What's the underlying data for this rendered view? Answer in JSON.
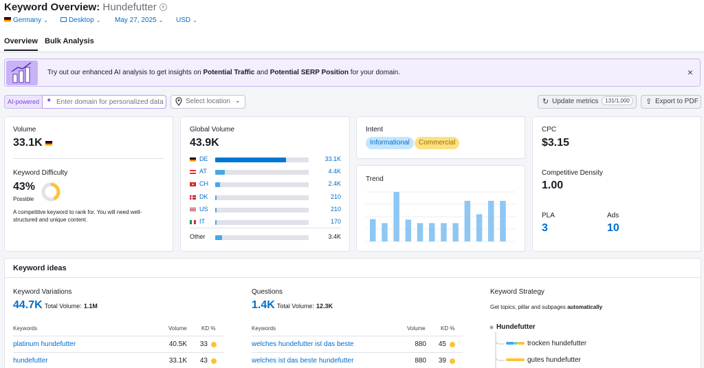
{
  "header": {
    "title": "Keyword Overview:",
    "keyword": "Hundefutter",
    "add_symbol": "+",
    "filters": {
      "database": "Germany",
      "device": "Desktop",
      "date": "May 27, 2025",
      "currency": "USD"
    },
    "tabs": [
      {
        "label": "Overview"
      },
      {
        "label": "Bulk Analysis"
      }
    ]
  },
  "banner": {
    "text_pre": "Try out our enhanced AI analysis to get insights on",
    "bold1": "Potential Traffic",
    "text_mid": "and",
    "bold2": "Potential SERP Position",
    "text_post": "for your domain.",
    "close": "×"
  },
  "controls": {
    "ai_badge": "AI-powered",
    "domain_placeholder": "Enter domain for personalized data",
    "location_placeholder": "Select location",
    "update_label": "Update metrics",
    "update_count": "131/1,000",
    "export_label": "Export to PDF"
  },
  "volume": {
    "label": "Volume",
    "value": "33.1K",
    "difficulty_label": "Keyword Difficulty",
    "difficulty_value": "43%",
    "difficulty_percent": 43,
    "difficulty_status": "Possible",
    "difficulty_desc_1": "A competitive keyword to rank for. You will need well-",
    "difficulty_desc_2": "structured and unique content."
  },
  "global_volume": {
    "label": "Global Volume",
    "value": "43.9K",
    "countries": [
      {
        "code": "DE",
        "value": "33.1K",
        "share": 0.754
      },
      {
        "code": "AT",
        "value": "4.4K",
        "share": 0.1
      },
      {
        "code": "CH",
        "value": "2.4K",
        "share": 0.055
      },
      {
        "code": "DK",
        "value": "210",
        "share": 0.005
      },
      {
        "code": "US",
        "value": "210",
        "share": 0.005
      },
      {
        "code": "IT",
        "value": "170",
        "share": 0.004
      }
    ],
    "other": {
      "label": "Other",
      "value": "3.4K",
      "share": 0.077
    }
  },
  "intent": {
    "label": "Intent",
    "chips": [
      "Informational",
      "Commercial"
    ],
    "colors": {
      "informational_bg": "#c4e5fe",
      "informational_fg": "#006dca",
      "commercial_bg": "#fce081",
      "commercial_fg": "#9c6e00"
    }
  },
  "trend": {
    "label": "Trend",
    "values": [
      0.45,
      0.37,
      1.0,
      0.44,
      0.37,
      0.37,
      0.37,
      0.37,
      0.82,
      0.55,
      0.82,
      0.82
    ]
  },
  "cpc": {
    "label": "CPC",
    "value": "$3.15",
    "density_label": "Competitive Density",
    "density_value": "1.00",
    "pla_label": "PLA",
    "pla_value": "3",
    "ads_label": "Ads",
    "ads_value": "10"
  },
  "keyword_ideas": {
    "title": "Keyword ideas",
    "variations": {
      "label": "Keyword Variations",
      "count": "44.7K",
      "total_label": "Total Volume:",
      "total_value": "1.1M",
      "columns": [
        "Keywords",
        "Volume",
        "KD %"
      ],
      "rows": [
        {
          "keyword": "platinum hundefutter",
          "volume": "40.5K",
          "kd": "33"
        },
        {
          "keyword": "hundefutter",
          "volume": "33.1K",
          "kd": "43"
        }
      ]
    },
    "questions": {
      "label": "Questions",
      "count": "1.4K",
      "total_label": "Total Volume:",
      "total_value": "12.3K",
      "columns": [
        "Keywords",
        "Volume",
        "KD %"
      ],
      "rows": [
        {
          "keyword": "welches hundefutter ist das beste",
          "volume": "880",
          "kd": "45"
        },
        {
          "keyword": "welches ist das beste hundefutter",
          "volume": "880",
          "kd": "39"
        }
      ]
    },
    "strategy": {
      "label": "Keyword Strategy",
      "desc_pre": "Get topics, pillar and subpages",
      "desc_bold": "automatically",
      "root": "Hundefutter",
      "children": [
        "trocken hundefutter",
        "gutes hundefutter"
      ]
    }
  },
  "colors": {
    "link": "#006dca",
    "bar_blue": "#45a7ea",
    "bar_dark": "#0077d4",
    "trend_bar": "#8fc7f2",
    "donut": "#fcc337",
    "ai_purple": "#7a43e6"
  }
}
